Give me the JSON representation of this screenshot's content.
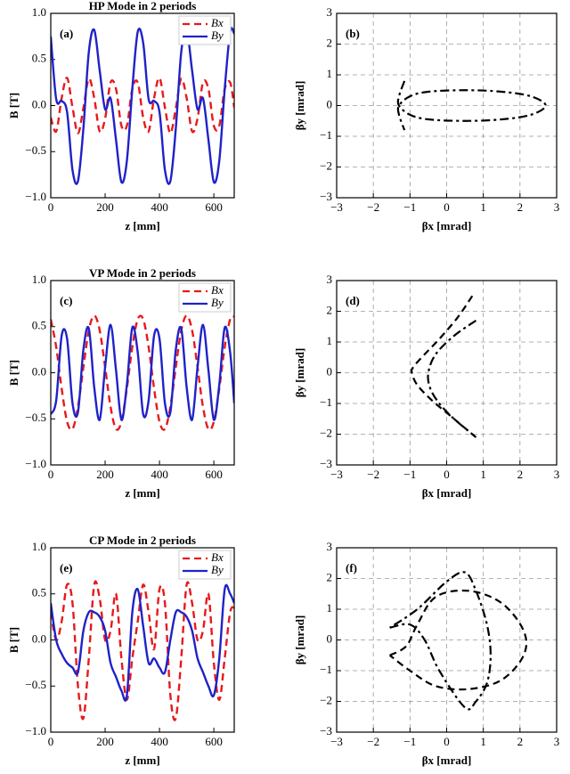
{
  "chart_data": [
    {
      "type": "line",
      "title": "HP Mode in 2 periods",
      "panel_label": "(a)",
      "xlabel": "z [mm]",
      "ylabel": "B [T]",
      "xlim": [
        0,
        675
      ],
      "ylim": [
        -1,
        1
      ],
      "xticks": [
        0,
        200,
        400,
        600
      ],
      "yticks": [
        {
          "value": -1,
          "label": "−1.0"
        },
        {
          "value": -0.5,
          "label": "−0.5"
        },
        {
          "value": 0,
          "label": "0.0"
        },
        0.5,
        {
          "value": 1,
          "label": "1.0"
        }
      ],
      "grid": false,
      "legend": "upper right",
      "x": [
        0,
        20,
        40,
        60,
        80,
        100,
        120,
        140,
        160,
        180,
        200,
        220,
        240,
        260,
        280,
        300,
        320,
        340,
        360,
        380,
        400,
        420,
        440,
        460,
        480,
        500,
        520,
        540,
        560,
        580,
        600,
        620,
        640,
        660,
        675
      ],
      "series": [
        {
          "name": "Bx",
          "color": "#e8191c",
          "dash": "dashed",
          "values": [
            -0.13,
            -0.28,
            0.08,
            0.3,
            -0.02,
            -0.3,
            -0.03,
            0.29,
            0.08,
            -0.28,
            -0.14,
            0.25,
            0.18,
            -0.22,
            -0.22,
            0.18,
            0.25,
            -0.13,
            -0.28,
            0.08,
            0.3,
            -0.02,
            -0.3,
            -0.03,
            0.29,
            0.08,
            -0.28,
            -0.14,
            0.25,
            0.18,
            -0.22,
            -0.22,
            0.18,
            0.25,
            -0.02
          ]
        },
        {
          "name": "By",
          "color": "#1f22c8",
          "dash": "solid",
          "values": [
            0.75,
            0.07,
            0.05,
            -0.07,
            -0.7,
            -0.82,
            -0.25,
            0.58,
            0.82,
            0.38,
            -0.04,
            0.08,
            -0.37,
            -0.83,
            -0.6,
            0.18,
            0.8,
            0.68,
            0.07,
            0.05,
            -0.07,
            -0.7,
            -0.82,
            -0.25,
            0.58,
            0.82,
            0.38,
            -0.04,
            0.08,
            -0.37,
            -0.83,
            -0.6,
            0.18,
            0.8,
            0.78
          ]
        }
      ]
    },
    {
      "type": "line",
      "panel_label": "(b)",
      "xlabel": "βx [mrad]",
      "ylabel": "βy [mrad]",
      "xlim": [
        -3,
        3
      ],
      "ylim": [
        -3,
        3
      ],
      "xticks": [
        {
          "value": -3,
          "label": "−3"
        },
        {
          "value": -2,
          "label": "−2"
        },
        {
          "value": -1,
          "label": "−1"
        },
        0,
        1,
        2,
        3
      ],
      "yticks": [
        {
          "value": -3,
          "label": "−3"
        },
        {
          "value": -2,
          "label": "−2"
        },
        {
          "value": -1,
          "label": "−1"
        },
        0,
        1,
        2,
        3
      ],
      "grid": true,
      "series": [
        {
          "color": "#000000",
          "dash": "dashdot",
          "x": [
            -1.15,
            -1.3,
            -1.3,
            -1.0,
            -0.5,
            0.5,
            1.5,
            2.3,
            2.7,
            2.3,
            1.5,
            0.5,
            -0.5,
            -1.0,
            -1.3,
            -1.3,
            -1.15
          ],
          "values": [
            0.8,
            0.3,
            0,
            -0.3,
            -0.45,
            -0.5,
            -0.45,
            -0.3,
            0,
            0.3,
            0.45,
            0.5,
            0.45,
            0.3,
            0,
            -0.3,
            -0.8
          ]
        }
      ]
    },
    {
      "type": "line",
      "title": "VP Mode in 2 periods",
      "panel_label": "(c)",
      "xlabel": "z [mm]",
      "ylabel": "B [T]",
      "xlim": [
        0,
        675
      ],
      "ylim": [
        -1,
        1
      ],
      "xticks": [
        0,
        200,
        400,
        600
      ],
      "yticks": [
        {
          "value": -1,
          "label": "−1.0"
        },
        {
          "value": -0.5,
          "label": "−0.5"
        },
        {
          "value": 0,
          "label": "0.0"
        },
        0.5,
        {
          "value": 1,
          "label": "1.0"
        }
      ],
      "grid": false,
      "legend": "upper right",
      "x": [
        0,
        20,
        40,
        60,
        80,
        100,
        120,
        140,
        160,
        180,
        200,
        220,
        240,
        260,
        280,
        300,
        320,
        340,
        360,
        380,
        400,
        420,
        440,
        460,
        480,
        500,
        520,
        540,
        560,
        580,
        600,
        620,
        640,
        660,
        675
      ],
      "series": [
        {
          "name": "Bx",
          "color": "#e8191c",
          "dash": "dashed",
          "values": [
            0.58,
            0.28,
            -0.17,
            -0.53,
            -0.61,
            -0.37,
            0.06,
            0.46,
            0.62,
            0.46,
            0.06,
            -0.37,
            -0.61,
            -0.53,
            -0.17,
            0.28,
            0.58,
            0.58,
            0.28,
            -0.17,
            -0.53,
            -0.61,
            -0.37,
            0.06,
            0.46,
            0.62,
            0.46,
            0.06,
            -0.37,
            -0.61,
            -0.53,
            -0.17,
            0.28,
            0.58,
            0.61
          ]
        },
        {
          "name": "By",
          "color": "#1f22c8",
          "dash": "solid",
          "values": [
            -0.45,
            -0.3,
            0.4,
            0.37,
            -0.33,
            -0.43,
            0.25,
            0.48,
            -0.16,
            -0.51,
            0.06,
            0.52,
            0.03,
            -0.51,
            -0.13,
            0.49,
            0.22,
            -0.45,
            -0.3,
            0.4,
            0.37,
            -0.33,
            -0.43,
            0.25,
            0.48,
            -0.16,
            -0.51,
            0.06,
            0.52,
            0.03,
            -0.51,
            -0.13,
            0.49,
            0.22,
            -0.33
          ]
        }
      ]
    },
    {
      "type": "line",
      "panel_label": "(d)",
      "xlabel": "βx [mrad]",
      "ylabel": "βy [mrad]",
      "xlim": [
        -3,
        3
      ],
      "ylim": [
        -3,
        3
      ],
      "xticks": [
        {
          "value": -3,
          "label": "−3"
        },
        {
          "value": -2,
          "label": "−2"
        },
        {
          "value": -1,
          "label": "−1"
        },
        0,
        1,
        2,
        3
      ],
      "yticks": [
        {
          "value": -3,
          "label": "−3"
        },
        {
          "value": -2,
          "label": "−2"
        },
        {
          "value": -1,
          "label": "−1"
        },
        0,
        1,
        2,
        3
      ],
      "grid": true,
      "series": [
        {
          "color": "#000000",
          "dash": "dashed",
          "x": [
            0.7,
            0.3,
            -0.2,
            -0.6,
            -0.9,
            -0.95,
            -0.8,
            -0.4,
            0.1,
            0.8
          ],
          "values": [
            2.5,
            1.8,
            1.1,
            0.6,
            0.2,
            0,
            -0.4,
            -0.9,
            -1.4,
            -2.1
          ]
        },
        {
          "color": "#000000",
          "dash": "dashdot",
          "x": [
            0.8,
            0.2,
            -0.3,
            -0.5,
            -0.45,
            -0.2,
            0.2,
            0.8
          ],
          "values": [
            1.7,
            1.2,
            0.6,
            0,
            -0.5,
            -1,
            -1.5,
            -2.1
          ]
        }
      ]
    },
    {
      "type": "line",
      "title": "CP Mode in 2 periods",
      "panel_label": "(e)",
      "xlabel": "z [mm]",
      "ylabel": "B [T]",
      "xlim": [
        0,
        675
      ],
      "ylim": [
        -1,
        1
      ],
      "xticks": [
        0,
        200,
        400,
        600
      ],
      "yticks": [
        {
          "value": -1,
          "label": "−1.0"
        },
        {
          "value": -0.5,
          "label": "−0.5"
        },
        {
          "value": 0,
          "label": "0.0"
        },
        0.5,
        {
          "value": 1,
          "label": "1.0"
        }
      ],
      "grid": false,
      "legend": "upper right",
      "x": [
        0,
        20,
        40,
        60,
        80,
        100,
        120,
        140,
        160,
        180,
        200,
        220,
        240,
        260,
        280,
        300,
        320,
        340,
        360,
        380,
        400,
        420,
        440,
        460,
        480,
        500,
        520,
        540,
        560,
        580,
        600,
        620,
        640,
        660,
        675
      ],
      "series": [
        {
          "name": "Bx",
          "color": "#e8191c",
          "dash": "dashed",
          "values": [
            0.3,
            0,
            0.2,
            0.6,
            0.4,
            -0.5,
            -0.85,
            -0.2,
            0.6,
            0.45,
            0,
            0.1,
            0.5,
            -0.2,
            -0.65,
            -0.2,
            0.2,
            0.6,
            0.3,
            -0.1,
            0.55,
            0.4,
            -0.6,
            -0.85,
            -0.2,
            0.6,
            0.4,
            0,
            0.1,
            0.5,
            -0.25,
            -0.65,
            -0.2,
            0.3,
            0.35
          ]
        },
        {
          "name": "By",
          "color": "#1f22c8",
          "dash": "solid",
          "values": [
            0.4,
            0,
            -0.15,
            -0.25,
            -0.3,
            -0.35,
            0.1,
            0.3,
            0.3,
            0.25,
            0.1,
            -0.25,
            -0.4,
            -0.55,
            -0.6,
            0.3,
            0.55,
            0.15,
            -0.25,
            -0.2,
            -0.3,
            -0.35,
            0,
            0.3,
            0.3,
            0.25,
            0.1,
            -0.2,
            -0.35,
            -0.5,
            -0.6,
            -0.2,
            0.55,
            0.5,
            0.4
          ]
        }
      ]
    },
    {
      "type": "line",
      "panel_label": "(f)",
      "xlabel": "βx [mrad]",
      "ylabel": "βy [mrad]",
      "xlim": [
        -3,
        3
      ],
      "ylim": [
        -3,
        3
      ],
      "xticks": [
        {
          "value": -3,
          "label": "−3"
        },
        {
          "value": -2,
          "label": "−2"
        },
        {
          "value": -1,
          "label": "−1"
        },
        0,
        1,
        2,
        3
      ],
      "yticks": [
        {
          "value": -3,
          "label": "−3"
        },
        {
          "value": -2,
          "label": "−2"
        },
        {
          "value": -1,
          "label": "−1"
        },
        0,
        1,
        2,
        3
      ],
      "grid": true,
      "series": [
        {
          "color": "#000000",
          "dash": "dashdot",
          "x": [
            -1.55,
            -1.0,
            -0.6,
            -0.2,
            0.5,
            0.8,
            1.1,
            1.2,
            1.1,
            0.8,
            0.5,
            0,
            -0.8,
            -1.55
          ],
          "values": [
            0.4,
            0.5,
            0,
            -1.0,
            -2.2,
            -2.0,
            -1.4,
            -0.5,
            0.5,
            1.6,
            2.2,
            1.9,
            1.0,
            0.4
          ]
        },
        {
          "color": "#000000",
          "dash": "dashed",
          "x": [
            -1.55,
            -1.1,
            -0.8,
            -0.3,
            0.6,
            1.5,
            2.1,
            2.1,
            1.5,
            0.6,
            -0.3,
            -1.0,
            -1.55
          ],
          "values": [
            -0.5,
            -0.2,
            0.5,
            1.4,
            1.6,
            1.2,
            0.3,
            -0.5,
            -1.3,
            -1.6,
            -1.5,
            -1.0,
            -0.5
          ]
        }
      ]
    }
  ]
}
